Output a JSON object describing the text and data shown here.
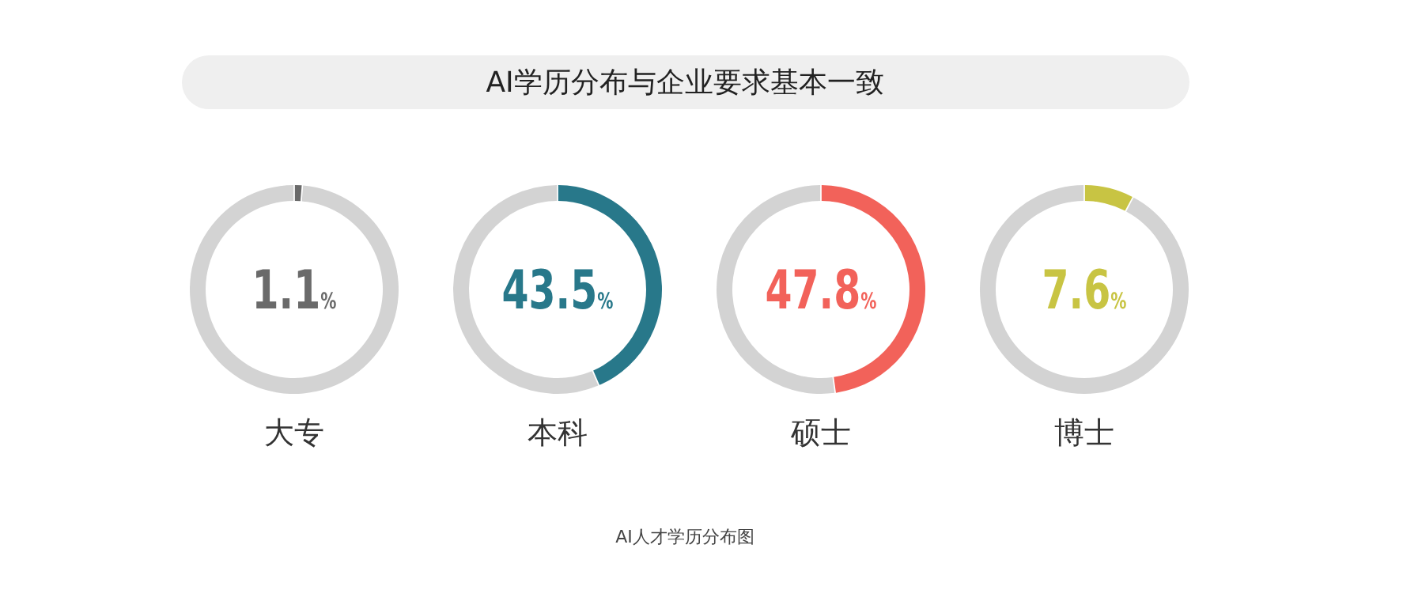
{
  "chart_data": [
    {
      "type": "other",
      "title": "AI学历分布与企业要求基本一致",
      "annotations": [
        "AI人才学历分布图"
      ]
    },
    {
      "type": "donut",
      "title": "大专",
      "categories": [
        null,
        null
      ],
      "values": [
        1.1,
        98.9
      ],
      "colors": [
        "#6a6a6a",
        "#d3d3d3"
      ],
      "annotations": [
        "1.1%"
      ]
    },
    {
      "type": "donut",
      "title": "本科",
      "categories": [
        null,
        null
      ],
      "values": [
        43.5,
        56.5
      ],
      "colors": [
        "#28788a",
        "#d3d3d3"
      ],
      "annotations": [
        "43.5%"
      ]
    },
    {
      "type": "donut",
      "title": "硕士",
      "categories": [
        null,
        null
      ],
      "values": [
        47.8,
        52.2
      ],
      "colors": [
        "#f2625a",
        "#d3d3d3"
      ],
      "annotations": [
        "47.8%"
      ]
    },
    {
      "type": "donut",
      "title": "博士",
      "categories": [
        null,
        null
      ],
      "values": [
        7.6,
        92.4
      ],
      "colors": [
        "#c8c443",
        "#d3d3d3"
      ],
      "annotations": [
        "7.6%"
      ]
    }
  ]
}
